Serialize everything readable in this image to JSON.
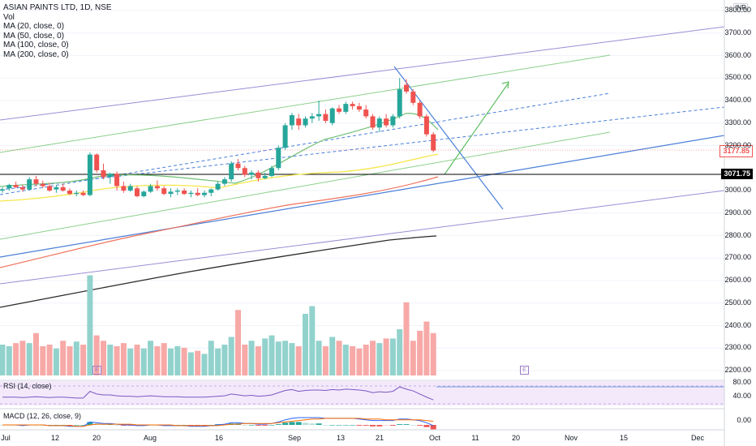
{
  "legend": {
    "symbol": "ASIAN PAINTS LTD, 1D, NSE",
    "vol": "Vol",
    "ma20": "MA (20, close, 0)",
    "ma50": "MA (50, close, 0)",
    "ma100": "MA (100, close, 0)",
    "ma200": "MA (200, close, 0)"
  },
  "currency_badge": "INR",
  "rsi_label": "RSI (14, close)",
  "macd_label": "MACD (12, 26, close, 9)",
  "earnings_icon": "E",
  "last_price": "3177.85",
  "ref_level": "3071.75",
  "price_axis": [
    "3800.00",
    "3700.00",
    "3600.00",
    "3500.00",
    "3400.00",
    "3300.00",
    "3200.00",
    "3000.00",
    "2900.00",
    "2800.00",
    "2700.00",
    "2600.00",
    "2500.00",
    "2400.00",
    "2300.00",
    "2200.00"
  ],
  "rsi_axis": [
    "80.00",
    "40.00"
  ],
  "macd_axis": [
    "0.00"
  ],
  "time_axis": [
    "Jul",
    "12",
    "20",
    "Aug",
    "16",
    "Sep",
    "13",
    "21",
    "Oct",
    "11",
    "20",
    "Nov",
    "15",
    "Dec"
  ],
  "colors": {
    "up": "#26a69a",
    "down": "#ef5350",
    "ma20": "#f5e64a",
    "ma50": "#6fbf73",
    "ma100": "#f0725c",
    "ma200": "#2b2b2b"
  },
  "chart_data": {
    "type": "candlestick",
    "title": "ASIAN PAINTS LTD, 1D, NSE",
    "ylim": [
      2200,
      3800
    ],
    "candles": [
      {
        "o": 3000,
        "h": 3015,
        "l": 2990,
        "c": 3005
      },
      {
        "o": 3010,
        "h": 3030,
        "l": 3000,
        "c": 3025
      },
      {
        "o": 3025,
        "h": 3040,
        "l": 3010,
        "c": 3015
      },
      {
        "o": 3015,
        "h": 3025,
        "l": 2995,
        "c": 3005
      },
      {
        "o": 3005,
        "h": 3060,
        "l": 3000,
        "c": 3050
      },
      {
        "o": 3050,
        "h": 3065,
        "l": 3020,
        "c": 3030
      },
      {
        "o": 3030,
        "h": 3045,
        "l": 3010,
        "c": 3020
      },
      {
        "o": 3020,
        "h": 3035,
        "l": 2995,
        "c": 3000
      },
      {
        "o": 3005,
        "h": 3025,
        "l": 2990,
        "c": 3015
      },
      {
        "o": 3015,
        "h": 3030,
        "l": 2995,
        "c": 3000
      },
      {
        "o": 3000,
        "h": 3010,
        "l": 2980,
        "c": 2985
      },
      {
        "o": 2985,
        "h": 3000,
        "l": 2975,
        "c": 2990
      },
      {
        "o": 2990,
        "h": 3000,
        "l": 2975,
        "c": 2980
      },
      {
        "o": 2980,
        "h": 3170,
        "l": 2975,
        "c": 3160
      },
      {
        "o": 3160,
        "h": 3165,
        "l": 3080,
        "c": 3090
      },
      {
        "o": 3090,
        "h": 3120,
        "l": 3050,
        "c": 3060
      },
      {
        "o": 3060,
        "h": 3080,
        "l": 3030,
        "c": 3075
      },
      {
        "o": 3075,
        "h": 3085,
        "l": 3000,
        "c": 3020
      },
      {
        "o": 3020,
        "h": 3040,
        "l": 2990,
        "c": 3000
      },
      {
        "o": 3000,
        "h": 3030,
        "l": 2995,
        "c": 3020
      },
      {
        "o": 3010,
        "h": 3020,
        "l": 2970,
        "c": 2975
      },
      {
        "o": 2975,
        "h": 3000,
        "l": 2970,
        "c": 2995
      },
      {
        "o": 2995,
        "h": 3030,
        "l": 2990,
        "c": 3020
      },
      {
        "o": 3020,
        "h": 3045,
        "l": 3000,
        "c": 3010
      },
      {
        "o": 3010,
        "h": 3020,
        "l": 2980,
        "c": 2985
      },
      {
        "o": 2985,
        "h": 3010,
        "l": 2970,
        "c": 2995
      },
      {
        "o": 2995,
        "h": 3010,
        "l": 2980,
        "c": 3000
      },
      {
        "o": 3000,
        "h": 3010,
        "l": 2980,
        "c": 2985
      },
      {
        "o": 2985,
        "h": 3000,
        "l": 2970,
        "c": 2990
      },
      {
        "o": 2990,
        "h": 3010,
        "l": 2975,
        "c": 2980
      },
      {
        "o": 2980,
        "h": 3000,
        "l": 2970,
        "c": 2990
      },
      {
        "o": 2990,
        "h": 3010,
        "l": 2975,
        "c": 3005
      },
      {
        "o": 3005,
        "h": 3040,
        "l": 3000,
        "c": 3030
      },
      {
        "o": 3030,
        "h": 3060,
        "l": 3020,
        "c": 3050
      },
      {
        "o": 3050,
        "h": 3130,
        "l": 3040,
        "c": 3120
      },
      {
        "o": 3120,
        "h": 3140,
        "l": 3090,
        "c": 3100
      },
      {
        "o": 3100,
        "h": 3110,
        "l": 3060,
        "c": 3070
      },
      {
        "o": 3070,
        "h": 3090,
        "l": 3050,
        "c": 3080
      },
      {
        "o": 3080,
        "h": 3090,
        "l": 3040,
        "c": 3055
      },
      {
        "o": 3055,
        "h": 3080,
        "l": 3050,
        "c": 3065
      },
      {
        "o": 3065,
        "h": 3110,
        "l": 3060,
        "c": 3100
      },
      {
        "o": 3100,
        "h": 3200,
        "l": 3090,
        "c": 3190
      },
      {
        "o": 3190,
        "h": 3300,
        "l": 3180,
        "c": 3290
      },
      {
        "o": 3290,
        "h": 3345,
        "l": 3270,
        "c": 3335
      },
      {
        "o": 3320,
        "h": 3340,
        "l": 3270,
        "c": 3290
      },
      {
        "o": 3290,
        "h": 3330,
        "l": 3280,
        "c": 3320
      },
      {
        "o": 3320,
        "h": 3345,
        "l": 3300,
        "c": 3330
      },
      {
        "o": 3330,
        "h": 3400,
        "l": 3310,
        "c": 3340
      },
      {
        "o": 3340,
        "h": 3360,
        "l": 3300,
        "c": 3310
      },
      {
        "o": 3300,
        "h": 3370,
        "l": 3290,
        "c": 3365
      },
      {
        "o": 3365,
        "h": 3380,
        "l": 3340,
        "c": 3350
      },
      {
        "o": 3350,
        "h": 3395,
        "l": 3340,
        "c": 3385
      },
      {
        "o": 3385,
        "h": 3395,
        "l": 3360,
        "c": 3375
      },
      {
        "o": 3375,
        "h": 3390,
        "l": 3350,
        "c": 3360
      },
      {
        "o": 3360,
        "h": 3380,
        "l": 3320,
        "c": 3330
      },
      {
        "o": 3330,
        "h": 3340,
        "l": 3270,
        "c": 3280
      },
      {
        "o": 3280,
        "h": 3330,
        "l": 3260,
        "c": 3320
      },
      {
        "o": 3320,
        "h": 3340,
        "l": 3280,
        "c": 3290
      },
      {
        "o": 3290,
        "h": 3340,
        "l": 3280,
        "c": 3330
      },
      {
        "o": 3330,
        "h": 3500,
        "l": 3320,
        "c": 3450
      },
      {
        "o": 3470,
        "h": 3495,
        "l": 3430,
        "c": 3440
      },
      {
        "o": 3440,
        "h": 3450,
        "l": 3380,
        "c": 3390
      },
      {
        "o": 3390,
        "h": 3400,
        "l": 3320,
        "c": 3330
      },
      {
        "o": 3330,
        "h": 3340,
        "l": 3240,
        "c": 3250
      },
      {
        "o": 3250,
        "h": 3260,
        "l": 3170,
        "c": 3178
      }
    ],
    "volume": [
      40,
      38,
      42,
      45,
      42,
      55,
      38,
      40,
      35,
      45,
      38,
      44,
      40,
      130,
      52,
      45,
      40,
      38,
      42,
      35,
      40,
      35,
      45,
      38,
      42,
      35,
      38,
      36,
      30,
      32,
      28,
      45,
      35,
      40,
      50,
      85,
      40,
      45,
      38,
      48,
      52,
      44,
      45,
      42,
      38,
      80,
      90,
      45,
      38,
      50,
      45,
      40,
      38,
      35,
      40,
      45,
      42,
      48,
      48,
      60,
      95,
      45,
      58,
      70,
      55
    ],
    "rsi": [
      55,
      55,
      55,
      54,
      55,
      56,
      55,
      54,
      55,
      55,
      54,
      53,
      53,
      68,
      62,
      60,
      60,
      58,
      57,
      57,
      56,
      57,
      58,
      57,
      56,
      56,
      56,
      55,
      55,
      55,
      55,
      56,
      57,
      58,
      62,
      60,
      58,
      59,
      57,
      58,
      60,
      65,
      70,
      72,
      68,
      70,
      71,
      71,
      70,
      72,
      71,
      73,
      72,
      71,
      69,
      65,
      67,
      66,
      68,
      78,
      73,
      69,
      62,
      55,
      49
    ],
    "macd": [
      0,
      0,
      0,
      -1,
      0,
      0,
      0,
      -1,
      -1,
      -1,
      -2,
      -2,
      -2,
      4,
      3,
      2,
      2,
      1,
      0,
      0,
      -1,
      -1,
      0,
      0,
      -1,
      -1,
      -1,
      -1,
      -2,
      -2,
      -2,
      -1,
      0,
      1,
      3,
      3,
      2,
      2,
      1,
      1,
      2,
      4,
      7,
      9,
      10,
      10,
      10,
      10,
      9,
      9,
      9,
      9,
      9,
      8,
      7,
      6,
      6,
      6,
      6,
      8,
      8,
      7,
      6,
      3,
      -1
    ],
    "signal": [
      0,
      0,
      0,
      0,
      0,
      0,
      0,
      -1,
      -1,
      -1,
      -1,
      -2,
      -2,
      0,
      1,
      1,
      1,
      1,
      1,
      1,
      0,
      0,
      0,
      0,
      0,
      0,
      -1,
      -1,
      -1,
      -1,
      -1,
      -1,
      -1,
      0,
      1,
      1,
      2,
      2,
      2,
      2,
      2,
      3,
      4,
      5,
      6,
      7,
      8,
      8,
      9,
      9,
      9,
      9,
      9,
      9,
      8,
      8,
      8,
      7,
      7,
      7,
      7,
      7,
      7,
      6,
      5
    ]
  }
}
